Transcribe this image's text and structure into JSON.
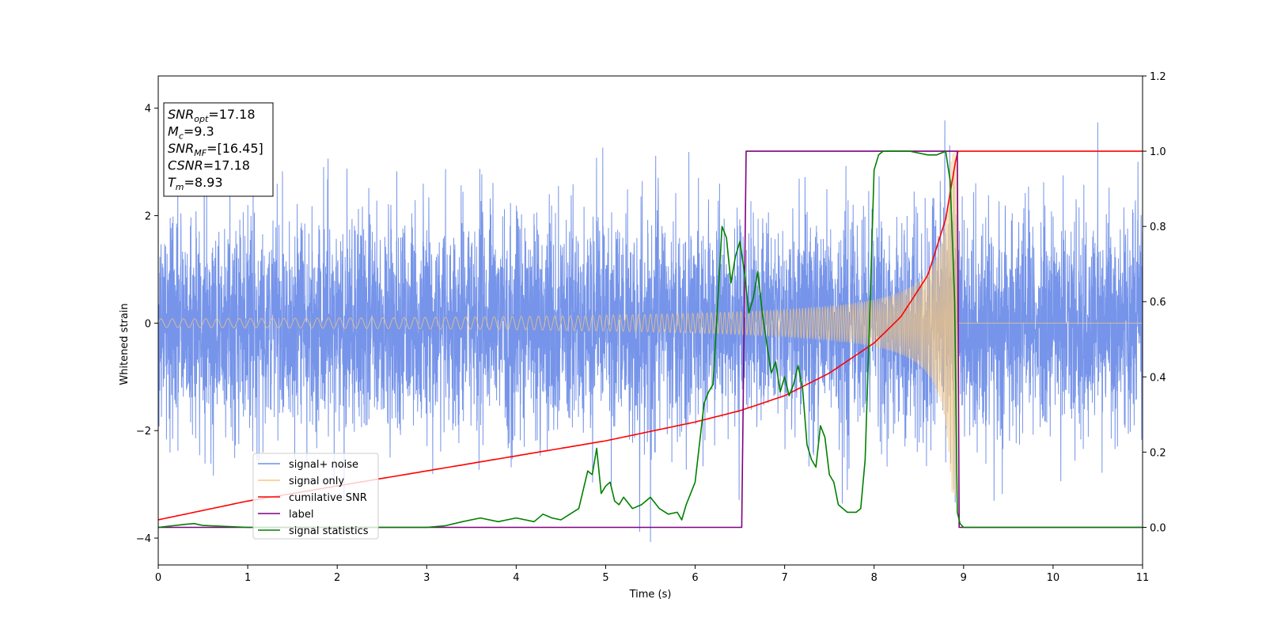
{
  "chart_data": {
    "type": "line",
    "title": "",
    "xlabel": "Time (s)",
    "ylabel": "Whitened strain",
    "xlim": [
      0,
      11
    ],
    "ylim": [
      -4.5,
      4.6
    ],
    "y2lim": [
      -0.1,
      1.2
    ],
    "xticks": [
      "0",
      "1",
      "2",
      "3",
      "4",
      "5",
      "6",
      "7",
      "8",
      "9",
      "10",
      "11"
    ],
    "yticks": [
      "−4",
      "−2",
      "0",
      "2",
      "4"
    ],
    "y2ticks": [
      "0.0",
      "0.2",
      "0.4",
      "0.6",
      "0.8",
      "1.0",
      "1.2"
    ],
    "grid": false,
    "legend_placement": "lower-left",
    "info_box": {
      "placement": "top-left",
      "lines": [
        {
          "name": "SNR",
          "sub": "opt",
          "value": "=17.18"
        },
        {
          "name": "M",
          "sub": "c",
          "value": "=9.3"
        },
        {
          "name": "SNR",
          "sub": "MF",
          "value": "=[16.45]"
        },
        {
          "name": "CSNR",
          "sub": "",
          "value": "=17.18"
        },
        {
          "name": "T",
          "sub": "m",
          "value": "=8.93"
        }
      ]
    },
    "series": [
      {
        "name": "signal+ noise",
        "axis": "left",
        "color": "#6f8ee8",
        "kind": "gaussian-noise-plus-signal",
        "noise_std": 1.0,
        "peak_values": [
          4.2,
          4.0,
          4.1,
          -4.1,
          -3.8
        ]
      },
      {
        "name": "signal only",
        "axis": "left",
        "color": "#f5c77e",
        "kind": "chirp",
        "start_amplitude": 0.08,
        "end_amplitude": 3.2,
        "merger_time": 8.93,
        "start_frequency_hz": 8,
        "end_frequency_hz": 60
      },
      {
        "name": "cumilative SNR",
        "axis": "right",
        "color": "#ff0000",
        "x": [
          0,
          1,
          2,
          3,
          4,
          5,
          6,
          6.5,
          7,
          7.5,
          8,
          8.3,
          8.6,
          8.8,
          8.93,
          11
        ],
        "y": [
          0.02,
          0.07,
          0.11,
          0.15,
          0.19,
          0.23,
          0.28,
          0.31,
          0.35,
          0.41,
          0.49,
          0.56,
          0.67,
          0.82,
          1.0,
          1.0
        ]
      },
      {
        "name": "label",
        "axis": "right",
        "color": "#800080",
        "x": [
          0,
          6.52,
          6.57,
          8.93,
          8.95,
          11
        ],
        "y": [
          0.0,
          0.0,
          1.0,
          1.0,
          0.0,
          0.0
        ]
      },
      {
        "name": "signal statistics",
        "axis": "right",
        "color": "#008000",
        "x": [
          0,
          0.3,
          0.4,
          0.5,
          1,
          2,
          3,
          3.2,
          3.4,
          3.6,
          3.8,
          4.0,
          4.2,
          4.3,
          4.4,
          4.5,
          4.6,
          4.7,
          4.8,
          4.85,
          4.9,
          4.95,
          5.0,
          5.05,
          5.1,
          5.15,
          5.2,
          5.3,
          5.4,
          5.5,
          5.6,
          5.7,
          5.8,
          5.85,
          5.9,
          6.0,
          6.1,
          6.15,
          6.2,
          6.3,
          6.35,
          6.4,
          6.45,
          6.5,
          6.55,
          6.6,
          6.65,
          6.7,
          6.75,
          6.8,
          6.85,
          6.9,
          6.95,
          7.0,
          7.05,
          7.1,
          7.15,
          7.2,
          7.25,
          7.3,
          7.35,
          7.4,
          7.45,
          7.5,
          7.55,
          7.6,
          7.7,
          7.8,
          7.85,
          7.9,
          7.95,
          8.0,
          8.05,
          8.1,
          8.2,
          8.4,
          8.6,
          8.7,
          8.8,
          8.85,
          8.9,
          8.93,
          8.96,
          9.0,
          9.5,
          10,
          11
        ],
        "y": [
          0.0,
          0.008,
          0.01,
          0.005,
          0.0,
          0.0,
          0.0,
          0.004,
          0.015,
          0.025,
          0.015,
          0.025,
          0.015,
          0.035,
          0.025,
          0.02,
          0.035,
          0.05,
          0.15,
          0.14,
          0.21,
          0.09,
          0.11,
          0.12,
          0.07,
          0.06,
          0.08,
          0.05,
          0.06,
          0.08,
          0.05,
          0.035,
          0.04,
          0.02,
          0.06,
          0.12,
          0.33,
          0.36,
          0.38,
          0.8,
          0.77,
          0.65,
          0.72,
          0.76,
          0.68,
          0.57,
          0.61,
          0.68,
          0.57,
          0.49,
          0.41,
          0.44,
          0.36,
          0.4,
          0.35,
          0.38,
          0.43,
          0.37,
          0.22,
          0.18,
          0.16,
          0.27,
          0.24,
          0.14,
          0.12,
          0.06,
          0.04,
          0.04,
          0.05,
          0.18,
          0.56,
          0.95,
          0.99,
          1.0,
          1.0,
          1.0,
          0.99,
          0.99,
          1.0,
          0.92,
          0.6,
          0.04,
          0.01,
          0.0,
          0.0,
          0.0,
          0.0
        ]
      }
    ]
  }
}
